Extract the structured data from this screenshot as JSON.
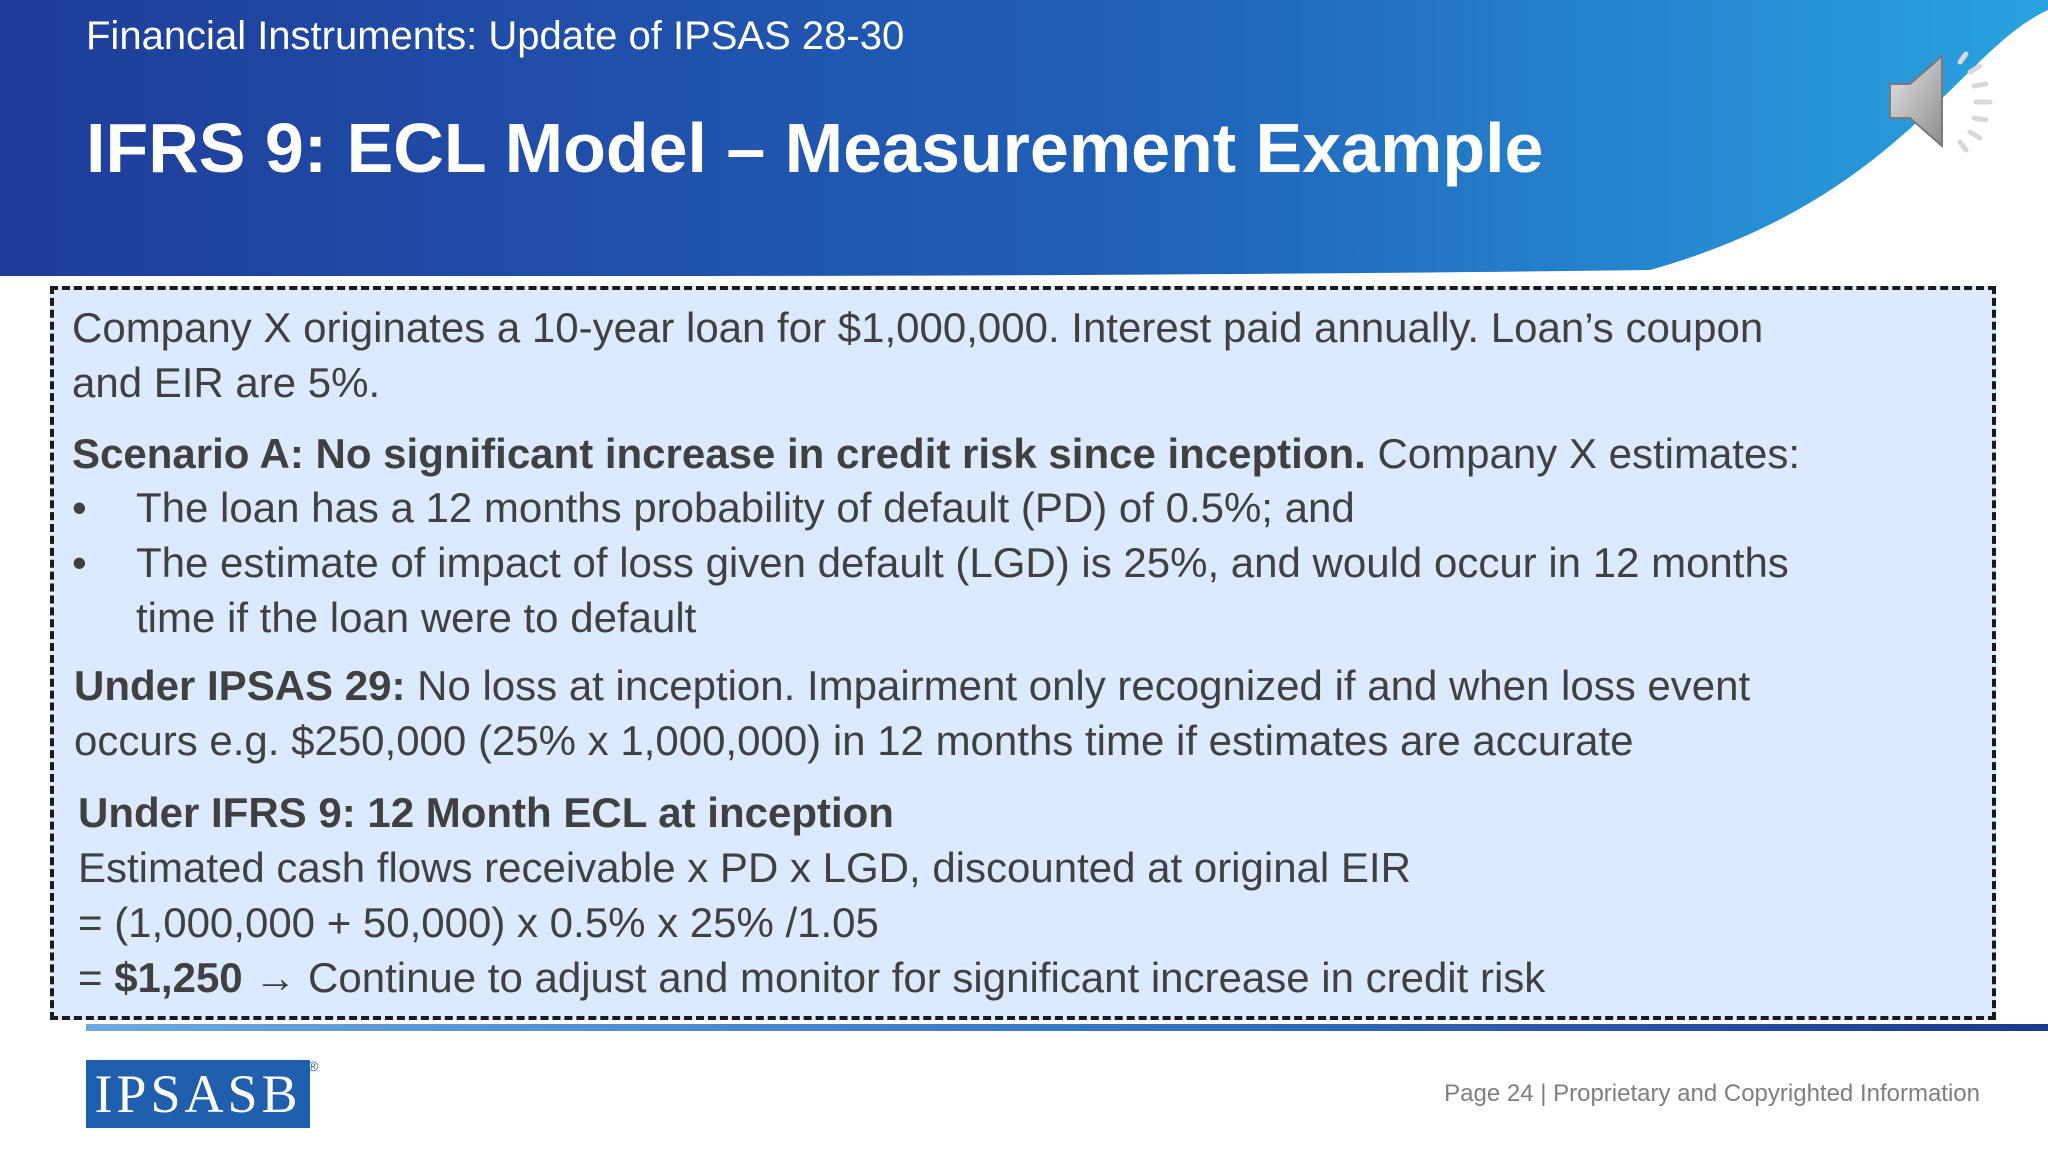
{
  "header": {
    "subtitle": "Financial Instruments:  Update of IPSAS 28-30",
    "title": "IFRS 9: ECL Model – Measurement Example"
  },
  "colors": {
    "header_dark": "#1f3d99",
    "header_light": "#29a3e0",
    "box_fill": "#dbeafe",
    "brand": "#1f5fae"
  },
  "icons": {
    "audio": "speaker-icon"
  },
  "content": {
    "intro_line1": "Company X originates a 10-year loan for $1,000,000. Interest paid annually. Loan’s coupon",
    "intro_line2": "and EIR are 5%.",
    "scenario_bold": "Scenario A: No significant increase in credit risk since inception.",
    "scenario_rest": " Company X estimates:",
    "bullet_char": "•",
    "bullet1": "The loan has a 12 months probability of default (PD) of 0.5%; and",
    "bullet2_line1": "The estimate of impact of loss given default (LGD) is 25%, and would occur in 12 months",
    "bullet2_line2": "time if the loan were to default",
    "ipsas_bold": "Under IPSAS 29:",
    "ipsas_rest": " No loss at inception. Impairment only recognized if and when loss event",
    "ipsas_line2": "occurs e.g. $250,000 (25% x 1,000,000) in 12 months time if estimates are accurate",
    "ifrs_heading": "Under IFRS 9: 12 Month ECL at inception",
    "ifrs_line1": "Estimated cash flows receivable x PD x LGD, discounted at original EIR",
    "ifrs_line2": "= (1,000,000 + 50,000) x 0.5% x 25% /1.05",
    "ifrs_line3_prefix": "= ",
    "ifrs_line3_bold": "$1,250",
    "ifrs_line3_arrow": " → ",
    "ifrs_line3_rest": "Continue to adjust and monitor for significant increase in credit risk"
  },
  "footer": {
    "logo_text": "IPSASB",
    "logo_mark": "®",
    "page_info": "Page 24 | Proprietary and Copyrighted Information"
  }
}
